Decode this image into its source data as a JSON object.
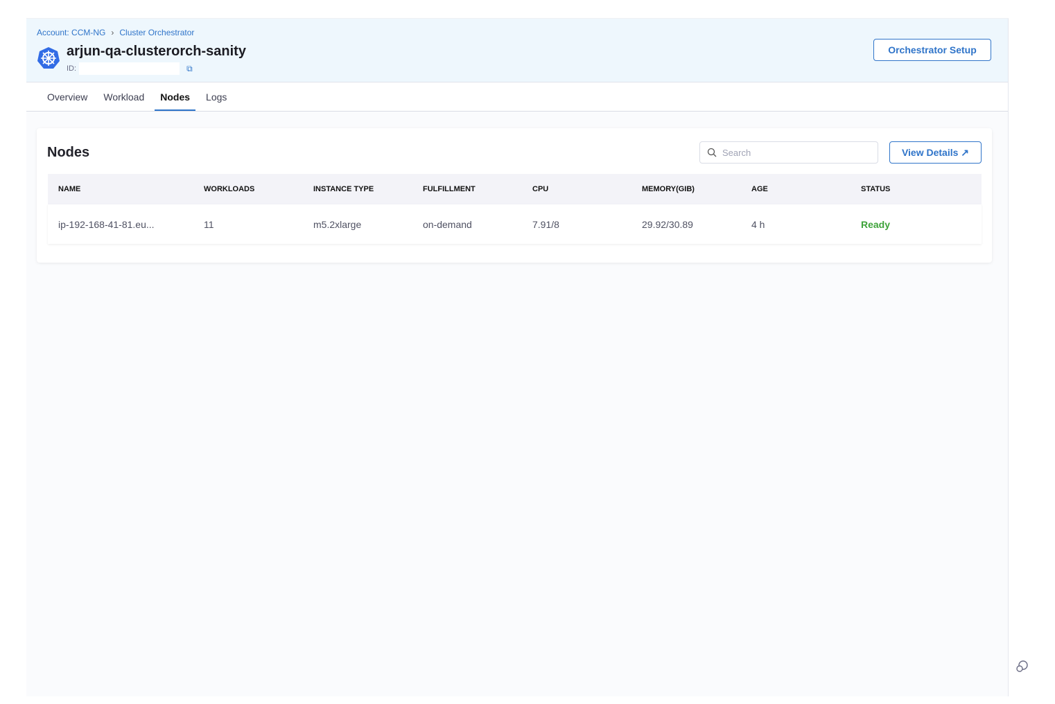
{
  "breadcrumbs": [
    "Account: CCM-NG",
    "Cluster Orchestrator"
  ],
  "cluster": {
    "name": "arjun-qa-clusterorch-sanity",
    "id_label": "ID:"
  },
  "header": {
    "setup_label": "Orchestrator Setup"
  },
  "tabs": [
    {
      "label": "Overview"
    },
    {
      "label": "Workload"
    },
    {
      "label": "Nodes",
      "active": true
    },
    {
      "label": "Logs"
    }
  ],
  "nodes": {
    "title": "Nodes",
    "search_placeholder": "Search",
    "view_details": "View Details",
    "columns": [
      "NAME",
      "WORKLOADS",
      "INSTANCE TYPE",
      "FULFILLMENT",
      "CPU",
      "MEMORY(GIB)",
      "AGE",
      "STATUS"
    ],
    "rows": [
      [
        "ip-192-168-41-81.eu...",
        "11",
        "m5.2xlarge",
        "on-demand",
        "7.91/8",
        "29.92/30.89",
        "4 h",
        "Ready"
      ]
    ]
  },
  "colors": {
    "accent": "#2f74c9",
    "status_ready": "#3ea33a"
  }
}
